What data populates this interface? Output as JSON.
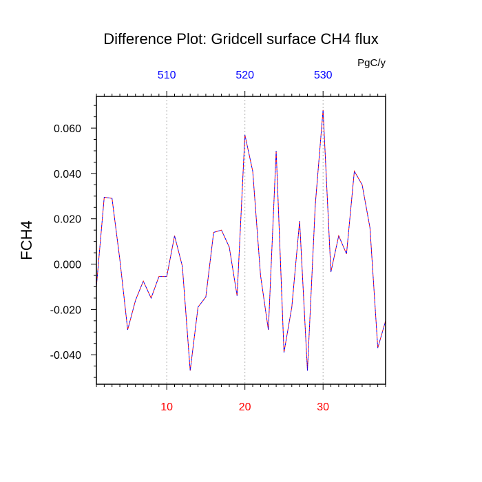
{
  "chart_data": {
    "type": "line",
    "title": "Difference Plot: Gridcell surface CH4 flux",
    "units": "PgC/y",
    "ylabel": "FCH4",
    "xlabel": "",
    "xlim": [
      1,
      38
    ],
    "ylim": [
      -0.053,
      0.074
    ],
    "x_ticks_bottom": [
      {
        "value": 10,
        "label": "10"
      },
      {
        "value": 20,
        "label": "20"
      },
      {
        "value": 30,
        "label": "30"
      }
    ],
    "x_ticks_top": [
      {
        "value": 10,
        "label": "510"
      },
      {
        "value": 20,
        "label": "520"
      },
      {
        "value": 30,
        "label": "530"
      }
    ],
    "y_ticks": [
      {
        "value": 0.06,
        "label": "0.060"
      },
      {
        "value": 0.04,
        "label": "0.040"
      },
      {
        "value": 0.02,
        "label": "0.020"
      },
      {
        "value": 0.0,
        "label": "0.000"
      },
      {
        "value": -0.02,
        "label": "-0.020"
      },
      {
        "value": -0.04,
        "label": "-0.040"
      }
    ],
    "grid": "vertical dotted at major x ticks",
    "series": [
      {
        "color": "#ff0000",
        "style": "dashed",
        "x": [
          1,
          2,
          3,
          4,
          5,
          6,
          7,
          8,
          9,
          10,
          11,
          12,
          13,
          14,
          15,
          16,
          17,
          18,
          19,
          20,
          21,
          22,
          23,
          24,
          25,
          26,
          27,
          28,
          29,
          30,
          31,
          32,
          33,
          34,
          35,
          36,
          37,
          38
        ],
        "values": [
          -0.01,
          0.0295,
          0.029,
          0.002,
          -0.029,
          -0.016,
          -0.0075,
          -0.015,
          -0.0055,
          -0.0055,
          0.0125,
          -0.001,
          -0.047,
          -0.019,
          -0.0145,
          0.014,
          0.015,
          0.0075,
          -0.014,
          0.057,
          0.041,
          -0.005,
          -0.029,
          0.05,
          -0.039,
          -0.019,
          0.019,
          -0.047,
          0.026,
          0.068,
          -0.0035,
          0.0125,
          0.0045,
          0.041,
          0.035,
          0.016,
          -0.037,
          -0.025
        ]
      },
      {
        "color": "#0000ff",
        "style": "dashed",
        "x": [
          1,
          2,
          3,
          4,
          5,
          6,
          7,
          8,
          9,
          10,
          11,
          12,
          13,
          14,
          15,
          16,
          17,
          18,
          19,
          20,
          21,
          22,
          23,
          24,
          25,
          26,
          27,
          28,
          29,
          30,
          31,
          32,
          33,
          34,
          35,
          36,
          37,
          38
        ],
        "values": [
          -0.01,
          0.0295,
          0.029,
          0.002,
          -0.029,
          -0.016,
          -0.0075,
          -0.015,
          -0.0055,
          -0.0055,
          0.0125,
          -0.001,
          -0.047,
          -0.019,
          -0.0145,
          0.014,
          0.015,
          0.0075,
          -0.014,
          0.057,
          0.041,
          -0.005,
          -0.029,
          0.05,
          -0.039,
          -0.019,
          0.019,
          -0.047,
          0.026,
          0.068,
          -0.0035,
          0.0125,
          0.0045,
          0.041,
          0.035,
          0.016,
          -0.037,
          -0.025
        ]
      }
    ]
  }
}
